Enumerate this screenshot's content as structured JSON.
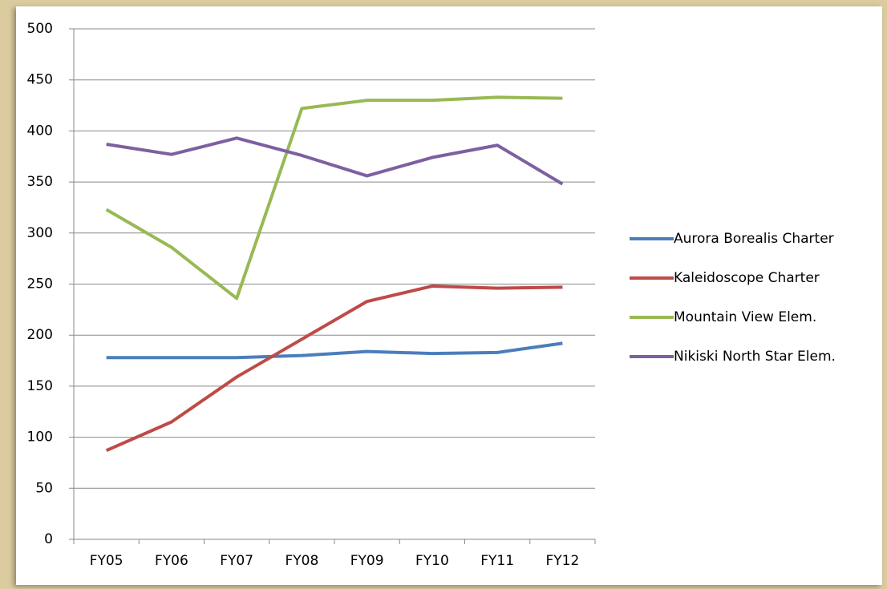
{
  "chart_data": {
    "type": "line",
    "categories": [
      "FY05",
      "FY06",
      "FY07",
      "FY08",
      "FY09",
      "FY10",
      "FY11",
      "FY12"
    ],
    "series": [
      {
        "name": "Aurora Borealis Charter",
        "color": "#4a7ebb",
        "values": [
          178,
          178,
          178,
          180,
          184,
          182,
          183,
          192
        ]
      },
      {
        "name": "Kaleidoscope Charter",
        "color": "#be4b48",
        "values": [
          87,
          115,
          159,
          196,
          233,
          248,
          246,
          247
        ]
      },
      {
        "name": "Mountain View Elem.",
        "color": "#98b954",
        "values": [
          323,
          286,
          236,
          422,
          430,
          430,
          433,
          432
        ]
      },
      {
        "name": "Nikiski North Star Elem.",
        "color": "#7d60a0",
        "values": [
          387,
          377,
          393,
          376,
          356,
          374,
          386,
          348
        ]
      }
    ],
    "ylim": [
      0,
      500
    ],
    "yticks": [
      0,
      50,
      100,
      150,
      200,
      250,
      300,
      350,
      400,
      450,
      500
    ],
    "grid": true,
    "legend": "right"
  }
}
